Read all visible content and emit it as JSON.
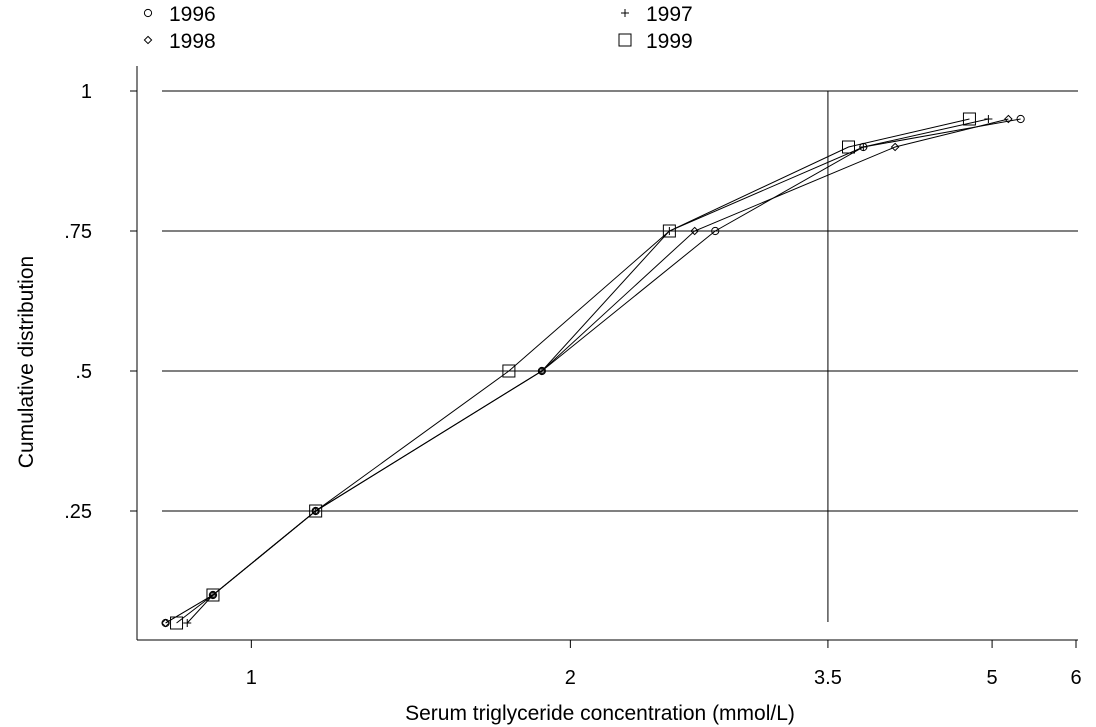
{
  "chart_data": {
    "type": "line",
    "xlabel": "Serum triglyceride concentration (mmol/L)",
    "ylabel": "Cumulative distribution",
    "x_scale": "log",
    "xlim": [
      0.82,
      6.0
    ],
    "ylim": [
      0.05,
      1.0
    ],
    "x_ticks": [
      {
        "value": 1,
        "label": "1"
      },
      {
        "value": 2,
        "label": "2"
      },
      {
        "value": 3.5,
        "label": "3.5"
      },
      {
        "value": 5,
        "label": "5"
      },
      {
        "value": 6,
        "label": "6"
      }
    ],
    "y_ticks": [
      {
        "value": 0.25,
        "label": ".25"
      },
      {
        "value": 0.5,
        "label": ".5"
      },
      {
        "value": 0.75,
        "label": ".75"
      },
      {
        "value": 1,
        "label": "1"
      }
    ],
    "grid": "horizontal at y ticks, vertical reference line at x = 3.5",
    "reference_line_x": 3.5,
    "legend_position": "top",
    "series": [
      {
        "name": "1996",
        "marker": "circle",
        "points": [
          [
            0.83,
            0.05
          ],
          [
            0.92,
            0.1
          ],
          [
            1.15,
            0.25
          ],
          [
            1.88,
            0.5
          ],
          [
            2.74,
            0.75
          ],
          [
            3.78,
            0.9
          ],
          [
            5.32,
            0.95
          ]
        ]
      },
      {
        "name": "1997",
        "marker": "plus",
        "points": [
          [
            0.87,
            0.05
          ],
          [
            0.92,
            0.1
          ],
          [
            1.15,
            0.25
          ],
          [
            1.88,
            0.5
          ],
          [
            2.48,
            0.75
          ],
          [
            3.78,
            0.9
          ],
          [
            4.96,
            0.95
          ]
        ]
      },
      {
        "name": "1998",
        "marker": "diamond",
        "points": [
          [
            0.83,
            0.05
          ],
          [
            0.92,
            0.1
          ],
          [
            1.15,
            0.25
          ],
          [
            1.88,
            0.5
          ],
          [
            2.62,
            0.75
          ],
          [
            4.05,
            0.9
          ],
          [
            5.18,
            0.95
          ]
        ]
      },
      {
        "name": "1999",
        "marker": "square",
        "points": [
          [
            0.85,
            0.05
          ],
          [
            0.92,
            0.1
          ],
          [
            1.15,
            0.25
          ],
          [
            1.75,
            0.5
          ],
          [
            2.48,
            0.75
          ],
          [
            3.66,
            0.9
          ],
          [
            4.76,
            0.95
          ]
        ]
      }
    ]
  }
}
